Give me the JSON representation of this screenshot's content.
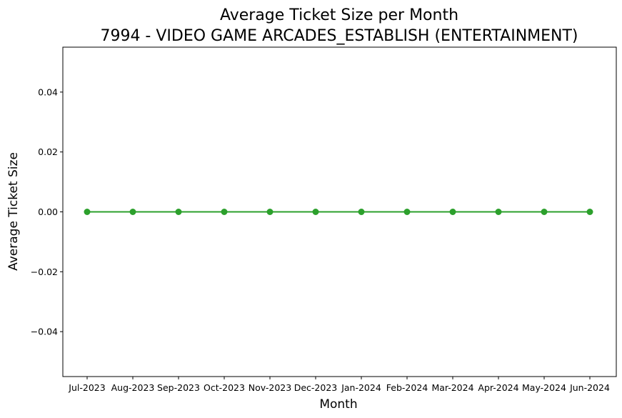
{
  "chart_data": {
    "type": "line",
    "title_line1": "Average Ticket Size per Month",
    "title_line2": "7994 - VIDEO GAME ARCADES_ESTABLISH (ENTERTAINMENT)",
    "xlabel": "Month",
    "ylabel": "Average Ticket Size",
    "categories": [
      "Jul-2023",
      "Aug-2023",
      "Sep-2023",
      "Oct-2023",
      "Nov-2023",
      "Dec-2023",
      "Jan-2024",
      "Feb-2024",
      "Mar-2024",
      "Apr-2024",
      "May-2024",
      "Jun-2024"
    ],
    "series": [
      {
        "values": [
          0,
          0,
          0,
          0,
          0,
          0,
          0,
          0,
          0,
          0,
          0,
          0
        ],
        "color": "#2ca02c",
        "marker": "circle"
      }
    ],
    "ylim": [
      -0.055,
      0.055
    ],
    "yticks": [
      -0.04,
      -0.02,
      0.0,
      0.02,
      0.04
    ],
    "ytick_labels": [
      "−0.04",
      "−0.02",
      "0.00",
      "0.02",
      "0.04"
    ],
    "grid": false,
    "legend": "none"
  }
}
